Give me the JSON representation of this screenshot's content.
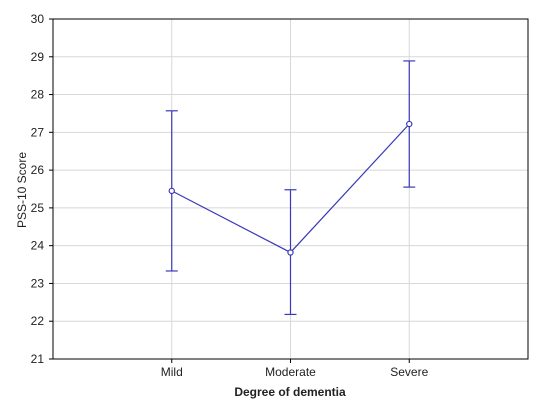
{
  "chart_data": {
    "type": "line",
    "xlabel": "Degree of dementia",
    "ylabel": "PSS-10 Score",
    "categories": [
      "Mild",
      "Moderate",
      "Severe"
    ],
    "series": [
      {
        "values": [
          25.45,
          23.82,
          27.22
        ],
        "error_low": [
          23.33,
          22.18,
          25.55
        ],
        "error_high": [
          27.57,
          25.48,
          28.89
        ]
      }
    ],
    "ylim": [
      21,
      30
    ],
    "yticks": [
      "21",
      "22",
      "23",
      "24",
      "25",
      "26",
      "27",
      "28",
      "29",
      "30"
    ],
    "grid": true,
    "colors": {
      "series": "#3a3ab8",
      "grid": "#d8d8d8",
      "frame": "#000000"
    }
  }
}
